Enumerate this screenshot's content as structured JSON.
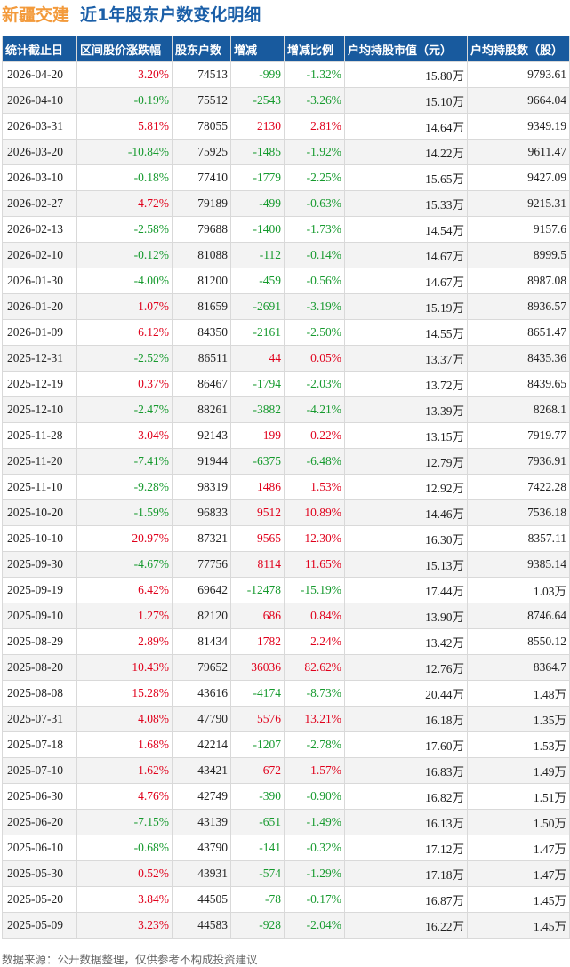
{
  "header": {
    "stock_name": "新疆交建",
    "subtitle": "近1年股东户数变化明细"
  },
  "table": {
    "columns": [
      "统计截止日",
      "区间股价涨跌幅",
      "股东户数",
      "增减",
      "增减比例",
      "户均持股市值（元）",
      "户均持股数（股）"
    ],
    "rows": [
      {
        "date": "2026-04-20",
        "price_change": "3.20%",
        "holders": "74513",
        "delta": "-999",
        "ratio": "-1.32%",
        "avg_value": "15.80万",
        "avg_shares": "9793.61",
        "pc_dir": "up",
        "d_dir": "down"
      },
      {
        "date": "2026-04-10",
        "price_change": "-0.19%",
        "holders": "75512",
        "delta": "-2543",
        "ratio": "-3.26%",
        "avg_value": "15.10万",
        "avg_shares": "9664.04",
        "pc_dir": "down",
        "d_dir": "down"
      },
      {
        "date": "2026-03-31",
        "price_change": "5.81%",
        "holders": "78055",
        "delta": "2130",
        "ratio": "2.81%",
        "avg_value": "14.64万",
        "avg_shares": "9349.19",
        "pc_dir": "up",
        "d_dir": "up"
      },
      {
        "date": "2026-03-20",
        "price_change": "-10.84%",
        "holders": "75925",
        "delta": "-1485",
        "ratio": "-1.92%",
        "avg_value": "14.22万",
        "avg_shares": "9611.47",
        "pc_dir": "down",
        "d_dir": "down"
      },
      {
        "date": "2026-03-10",
        "price_change": "-0.18%",
        "holders": "77410",
        "delta": "-1779",
        "ratio": "-2.25%",
        "avg_value": "15.65万",
        "avg_shares": "9427.09",
        "pc_dir": "down",
        "d_dir": "down"
      },
      {
        "date": "2026-02-27",
        "price_change": "4.72%",
        "holders": "79189",
        "delta": "-499",
        "ratio": "-0.63%",
        "avg_value": "15.33万",
        "avg_shares": "9215.31",
        "pc_dir": "up",
        "d_dir": "down"
      },
      {
        "date": "2026-02-13",
        "price_change": "-2.58%",
        "holders": "79688",
        "delta": "-1400",
        "ratio": "-1.73%",
        "avg_value": "14.54万",
        "avg_shares": "9157.6",
        "pc_dir": "down",
        "d_dir": "down"
      },
      {
        "date": "2026-02-10",
        "price_change": "-0.12%",
        "holders": "81088",
        "delta": "-112",
        "ratio": "-0.14%",
        "avg_value": "14.67万",
        "avg_shares": "8999.5",
        "pc_dir": "down",
        "d_dir": "down"
      },
      {
        "date": "2026-01-30",
        "price_change": "-4.00%",
        "holders": "81200",
        "delta": "-459",
        "ratio": "-0.56%",
        "avg_value": "14.67万",
        "avg_shares": "8987.08",
        "pc_dir": "down",
        "d_dir": "down"
      },
      {
        "date": "2026-01-20",
        "price_change": "1.07%",
        "holders": "81659",
        "delta": "-2691",
        "ratio": "-3.19%",
        "avg_value": "15.19万",
        "avg_shares": "8936.57",
        "pc_dir": "up",
        "d_dir": "down"
      },
      {
        "date": "2026-01-09",
        "price_change": "6.12%",
        "holders": "84350",
        "delta": "-2161",
        "ratio": "-2.50%",
        "avg_value": "14.55万",
        "avg_shares": "8651.47",
        "pc_dir": "up",
        "d_dir": "down"
      },
      {
        "date": "2025-12-31",
        "price_change": "-2.52%",
        "holders": "86511",
        "delta": "44",
        "ratio": "0.05%",
        "avg_value": "13.37万",
        "avg_shares": "8435.36",
        "pc_dir": "down",
        "d_dir": "up"
      },
      {
        "date": "2025-12-19",
        "price_change": "0.37%",
        "holders": "86467",
        "delta": "-1794",
        "ratio": "-2.03%",
        "avg_value": "13.72万",
        "avg_shares": "8439.65",
        "pc_dir": "up",
        "d_dir": "down"
      },
      {
        "date": "2025-12-10",
        "price_change": "-2.47%",
        "holders": "88261",
        "delta": "-3882",
        "ratio": "-4.21%",
        "avg_value": "13.39万",
        "avg_shares": "8268.1",
        "pc_dir": "down",
        "d_dir": "down"
      },
      {
        "date": "2025-11-28",
        "price_change": "3.04%",
        "holders": "92143",
        "delta": "199",
        "ratio": "0.22%",
        "avg_value": "13.15万",
        "avg_shares": "7919.77",
        "pc_dir": "up",
        "d_dir": "up"
      },
      {
        "date": "2025-11-20",
        "price_change": "-7.41%",
        "holders": "91944",
        "delta": "-6375",
        "ratio": "-6.48%",
        "avg_value": "12.79万",
        "avg_shares": "7936.91",
        "pc_dir": "down",
        "d_dir": "down"
      },
      {
        "date": "2025-11-10",
        "price_change": "-9.28%",
        "holders": "98319",
        "delta": "1486",
        "ratio": "1.53%",
        "avg_value": "12.92万",
        "avg_shares": "7422.28",
        "pc_dir": "down",
        "d_dir": "up"
      },
      {
        "date": "2025-10-20",
        "price_change": "-1.59%",
        "holders": "96833",
        "delta": "9512",
        "ratio": "10.89%",
        "avg_value": "14.46万",
        "avg_shares": "7536.18",
        "pc_dir": "down",
        "d_dir": "up"
      },
      {
        "date": "2025-10-10",
        "price_change": "20.97%",
        "holders": "87321",
        "delta": "9565",
        "ratio": "12.30%",
        "avg_value": "16.30万",
        "avg_shares": "8357.11",
        "pc_dir": "up",
        "d_dir": "up"
      },
      {
        "date": "2025-09-30",
        "price_change": "-4.67%",
        "holders": "77756",
        "delta": "8114",
        "ratio": "11.65%",
        "avg_value": "15.13万",
        "avg_shares": "9385.14",
        "pc_dir": "down",
        "d_dir": "up"
      },
      {
        "date": "2025-09-19",
        "price_change": "6.42%",
        "holders": "69642",
        "delta": "-12478",
        "ratio": "-15.19%",
        "avg_value": "17.44万",
        "avg_shares": "1.03万",
        "pc_dir": "up",
        "d_dir": "down"
      },
      {
        "date": "2025-09-10",
        "price_change": "1.27%",
        "holders": "82120",
        "delta": "686",
        "ratio": "0.84%",
        "avg_value": "13.90万",
        "avg_shares": "8746.64",
        "pc_dir": "up",
        "d_dir": "up"
      },
      {
        "date": "2025-08-29",
        "price_change": "2.89%",
        "holders": "81434",
        "delta": "1782",
        "ratio": "2.24%",
        "avg_value": "13.42万",
        "avg_shares": "8550.12",
        "pc_dir": "up",
        "d_dir": "up"
      },
      {
        "date": "2025-08-20",
        "price_change": "10.43%",
        "holders": "79652",
        "delta": "36036",
        "ratio": "82.62%",
        "avg_value": "12.76万",
        "avg_shares": "8364.7",
        "pc_dir": "up",
        "d_dir": "up"
      },
      {
        "date": "2025-08-08",
        "price_change": "15.28%",
        "holders": "43616",
        "delta": "-4174",
        "ratio": "-8.73%",
        "avg_value": "20.44万",
        "avg_shares": "1.48万",
        "pc_dir": "up",
        "d_dir": "down"
      },
      {
        "date": "2025-07-31",
        "price_change": "4.08%",
        "holders": "47790",
        "delta": "5576",
        "ratio": "13.21%",
        "avg_value": "16.18万",
        "avg_shares": "1.35万",
        "pc_dir": "up",
        "d_dir": "up"
      },
      {
        "date": "2025-07-18",
        "price_change": "1.68%",
        "holders": "42214",
        "delta": "-1207",
        "ratio": "-2.78%",
        "avg_value": "17.60万",
        "avg_shares": "1.53万",
        "pc_dir": "up",
        "d_dir": "down"
      },
      {
        "date": "2025-07-10",
        "price_change": "1.62%",
        "holders": "43421",
        "delta": "672",
        "ratio": "1.57%",
        "avg_value": "16.83万",
        "avg_shares": "1.49万",
        "pc_dir": "up",
        "d_dir": "up"
      },
      {
        "date": "2025-06-30",
        "price_change": "4.76%",
        "holders": "42749",
        "delta": "-390",
        "ratio": "-0.90%",
        "avg_value": "16.82万",
        "avg_shares": "1.51万",
        "pc_dir": "up",
        "d_dir": "down"
      },
      {
        "date": "2025-06-20",
        "price_change": "-7.15%",
        "holders": "43139",
        "delta": "-651",
        "ratio": "-1.49%",
        "avg_value": "16.13万",
        "avg_shares": "1.50万",
        "pc_dir": "down",
        "d_dir": "down"
      },
      {
        "date": "2025-06-10",
        "price_change": "-0.68%",
        "holders": "43790",
        "delta": "-141",
        "ratio": "-0.32%",
        "avg_value": "17.12万",
        "avg_shares": "1.47万",
        "pc_dir": "down",
        "d_dir": "down"
      },
      {
        "date": "2025-05-30",
        "price_change": "0.52%",
        "holders": "43931",
        "delta": "-574",
        "ratio": "-1.29%",
        "avg_value": "17.18万",
        "avg_shares": "1.47万",
        "pc_dir": "up",
        "d_dir": "down"
      },
      {
        "date": "2025-05-20",
        "price_change": "3.84%",
        "holders": "44505",
        "delta": "-78",
        "ratio": "-0.17%",
        "avg_value": "16.87万",
        "avg_shares": "1.45万",
        "pc_dir": "up",
        "d_dir": "down"
      },
      {
        "date": "2025-05-09",
        "price_change": "3.23%",
        "holders": "44583",
        "delta": "-928",
        "ratio": "-2.04%",
        "avg_value": "16.22万",
        "avg_shares": "1.45万",
        "pc_dir": "up",
        "d_dir": "down"
      }
    ]
  },
  "footer": {
    "source": "数据来源：公开数据整理，仅供参考不构成投资建议"
  },
  "colors": {
    "header_bg": "#185a9e",
    "up": "#e0001b",
    "down": "#169a2e",
    "stock_name": "#f39a3b",
    "subtitle": "#1b5fa8"
  }
}
